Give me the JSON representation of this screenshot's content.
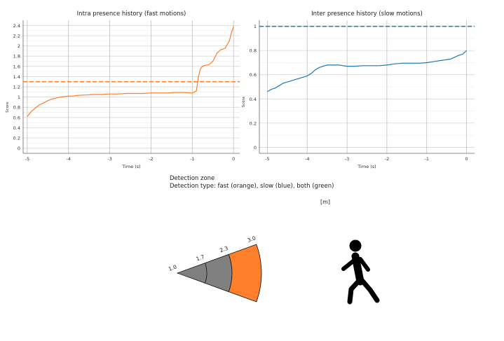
{
  "chart_data": [
    {
      "type": "line",
      "title": "Intra presence history (fast motions)",
      "xlabel": "Time (s)",
      "ylabel": "Score",
      "xlim": [
        -5.1,
        0.15
      ],
      "ylim": [
        -0.1,
        2.5
      ],
      "x_ticks": [
        "-5",
        "-4",
        "-3",
        "-2",
        "-1",
        "0"
      ],
      "y_ticks": [
        "0",
        "0.2",
        "0.4",
        "0.6",
        "0.8",
        "1",
        "1.2",
        "1.4",
        "1.6",
        "1.8",
        "2",
        "2.2",
        "2.4"
      ],
      "grid": true,
      "threshold": 1.3,
      "series": [
        {
          "color": "#ff7f2a",
          "x": [
            -5.0,
            -4.9,
            -4.8,
            -4.7,
            -4.6,
            -4.5,
            -4.4,
            -4.3,
            -4.2,
            -4.1,
            -4.0,
            -3.9,
            -3.8,
            -3.6,
            -3.4,
            -3.2,
            -3.0,
            -2.8,
            -2.6,
            -2.4,
            -2.2,
            -2.0,
            -1.8,
            -1.6,
            -1.4,
            -1.2,
            -1.0,
            -0.95,
            -0.9,
            -0.85,
            -0.8,
            -0.75,
            -0.7,
            -0.6,
            -0.5,
            -0.45,
            -0.4,
            -0.3,
            -0.25,
            -0.2,
            -0.15,
            -0.1,
            -0.05,
            0.0
          ],
          "values": [
            0.62,
            0.72,
            0.79,
            0.85,
            0.89,
            0.93,
            0.96,
            0.98,
            1.0,
            1.01,
            1.02,
            1.02,
            1.03,
            1.04,
            1.05,
            1.05,
            1.06,
            1.06,
            1.07,
            1.07,
            1.07,
            1.08,
            1.08,
            1.08,
            1.09,
            1.09,
            1.08,
            1.1,
            1.12,
            1.4,
            1.56,
            1.6,
            1.62,
            1.63,
            1.7,
            1.78,
            1.86,
            1.93,
            1.94,
            1.96,
            2.03,
            2.1,
            2.26,
            2.38
          ]
        }
      ]
    },
    {
      "type": "line",
      "title": "Inter presence history (slow motions)",
      "xlabel": "Time (s)",
      "ylabel": "Score",
      "xlim": [
        -5.2,
        0.2
      ],
      "ylim": [
        -0.05,
        1.05
      ],
      "x_ticks": [
        "-5",
        "-4",
        "-3",
        "-2",
        "-1",
        "0"
      ],
      "y_ticks": [
        "0",
        "0.2",
        "0.4",
        "0.6",
        "0.8",
        "1"
      ],
      "grid": true,
      "threshold": 1.0,
      "series": [
        {
          "color": "#1f77b4",
          "x": [
            -5.0,
            -4.9,
            -4.8,
            -4.7,
            -4.6,
            -4.5,
            -4.4,
            -4.3,
            -4.2,
            -4.1,
            -4.0,
            -3.9,
            -3.8,
            -3.7,
            -3.6,
            -3.5,
            -3.4,
            -3.3,
            -3.2,
            -3.1,
            -3.0,
            -2.9,
            -2.8,
            -2.6,
            -2.4,
            -2.2,
            -2.0,
            -1.8,
            -1.6,
            -1.4,
            -1.2,
            -1.0,
            -0.8,
            -0.6,
            -0.4,
            -0.2,
            -0.1,
            0.0
          ],
          "values": [
            0.46,
            0.48,
            0.49,
            0.51,
            0.53,
            0.54,
            0.55,
            0.56,
            0.57,
            0.58,
            0.59,
            0.61,
            0.64,
            0.66,
            0.67,
            0.68,
            0.68,
            0.68,
            0.68,
            0.675,
            0.67,
            0.67,
            0.67,
            0.675,
            0.675,
            0.675,
            0.68,
            0.69,
            0.695,
            0.695,
            0.695,
            0.7,
            0.71,
            0.72,
            0.73,
            0.76,
            0.77,
            0.8
          ]
        }
      ]
    }
  ],
  "legend": {
    "zone_title": "Detection zone",
    "detection_type": "Detection type: fast (orange), slow (blue), both (green)"
  },
  "zone": {
    "unit_label": "[m]",
    "ranges": [
      1.0,
      1.7,
      2.3,
      3.0
    ],
    "range_labels": [
      "1.0",
      "1.7",
      "2.3",
      "3.0"
    ],
    "inner_color": "#808080",
    "outer_color": "#ff7f2a",
    "outer_detection": "fast",
    "person_icon": "walking-person-icon"
  }
}
